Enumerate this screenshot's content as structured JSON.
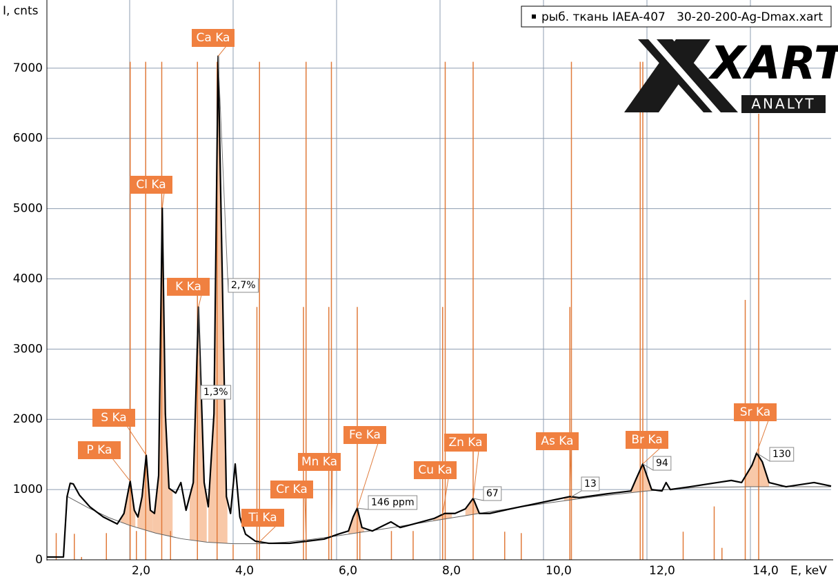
{
  "chart_data": {
    "type": "line",
    "y_label": "I, cnts",
    "x_label": "E, keV",
    "xlim": [
      0.4,
      15.56
    ],
    "ylim": [
      0,
      7970
    ],
    "xticks": [
      {
        "value": 2,
        "label": "2,0"
      },
      {
        "value": 4,
        "label": "4,0"
      },
      {
        "value": 6,
        "label": "6,0"
      },
      {
        "value": 8,
        "label": "8,0"
      },
      {
        "value": 10,
        "label": "10,0"
      },
      {
        "value": 12,
        "label": "12,0"
      },
      {
        "value": 14,
        "label": "14,0"
      }
    ],
    "yticks": [
      0,
      1000,
      2000,
      3000,
      4000,
      5000,
      6000,
      7000
    ],
    "grid": true,
    "legend_position": "upper right",
    "series": [
      {
        "name": "рыб. ткань IAEA-407   30-20-200-Ag-Dmax.xart",
        "color": "#000000",
        "x": [
          0.4,
          0.72,
          0.79,
          0.85,
          0.91,
          1.03,
          1.23,
          1.49,
          1.76,
          1.89,
          2.01,
          2.09,
          2.16,
          2.24,
          2.32,
          2.4,
          2.48,
          2.56,
          2.63,
          2.69,
          2.76,
          2.89,
          2.99,
          3.09,
          3.23,
          3.33,
          3.44,
          3.52,
          3.63,
          3.71,
          3.79,
          3.87,
          3.95,
          4.04,
          4.13,
          4.24,
          4.43,
          4.69,
          5.09,
          5.43,
          5.76,
          6.03,
          6.23,
          6.32,
          6.4,
          6.49,
          6.69,
          7.05,
          7.23,
          7.49,
          7.89,
          8.09,
          8.29,
          8.49,
          8.64,
          8.76,
          8.96,
          9.36,
          9.89,
          10.51,
          10.69,
          11.23,
          11.69,
          11.79,
          11.92,
          12.09,
          12.29,
          12.37,
          12.45,
          12.83,
          13.36,
          13.63,
          13.83,
          14.03,
          14.12,
          14.23,
          14.36,
          14.69,
          15.23,
          15.56
        ],
        "values": [
          40,
          40,
          900,
          1090,
          1080,
          920,
          755,
          610,
          510,
          660,
          1120,
          705,
          610,
          900,
          1490,
          705,
          660,
          1200,
          5010,
          2080,
          1020,
          950,
          1100,
          705,
          1100,
          3600,
          1100,
          755,
          2080,
          7170,
          4045,
          900,
          660,
          1365,
          610,
          365,
          265,
          235,
          235,
          265,
          295,
          365,
          410,
          610,
          735,
          460,
          410,
          540,
          460,
          510,
          590,
          660,
          660,
          725,
          875,
          660,
          660,
          725,
          805,
          900,
          885,
          940,
          980,
          1150,
          1365,
          1000,
          980,
          1100,
          1000,
          1040,
          1100,
          1130,
          1100,
          1345,
          1520,
          1395,
          1100,
          1040,
          1100,
          1050
        ]
      }
    ],
    "background": {
      "color": "#606060",
      "x": [
        0.8,
        1.2,
        1.6,
        2.0,
        2.5,
        3.0,
        3.5,
        4.0,
        4.5,
        5.0,
        5.5,
        6.0,
        7.0,
        8.0,
        9.0,
        10.0,
        11.0,
        12.0,
        13.0,
        14.0,
        15.56
      ],
      "values": [
        900,
        740,
        600,
        490,
        380,
        300,
        250,
        230,
        230,
        250,
        290,
        340,
        450,
        570,
        690,
        800,
        900,
        980,
        1030,
        1040,
        1040
      ]
    },
    "emission_lines": {
      "color": "#e07a3a",
      "x": [
        0.58,
        0.93,
        1.07,
        1.55,
        2.01,
        2.13,
        2.31,
        2.62,
        2.79,
        3.31,
        3.69,
        4.0,
        4.46,
        4.51,
        5.36,
        5.41,
        5.85,
        5.9,
        6.4,
        6.45,
        7.06,
        7.48,
        8.05,
        8.1,
        8.64,
        9.25,
        9.57,
        10.51,
        10.54,
        11.87,
        11.92,
        12.7,
        13.3,
        13.45,
        13.9,
        14.16
      ],
      "values": [
        380,
        370,
        40,
        380,
        7090,
        410,
        7090,
        7090,
        410,
        7090,
        7090,
        215,
        3600,
        7090,
        3600,
        7090,
        3600,
        7090,
        3600,
        410,
        410,
        410,
        3600,
        7090,
        7090,
        400,
        380,
        3600,
        7090,
        7090,
        7090,
        400,
        760,
        170,
        3700,
        6350
      ]
    },
    "peaks": [
      {
        "label": "P Ka",
        "energy": 2.01,
        "region": [
          1.83,
          2.11
        ]
      },
      {
        "label": "S Ka",
        "energy": 2.32,
        "region": [
          2.15,
          2.45
        ]
      },
      {
        "label": "Cl Ka",
        "energy": 2.63,
        "region": [
          2.45,
          2.83
        ]
      },
      {
        "label": "K Ka",
        "energy": 3.33,
        "value_label": "1,3%",
        "region": [
          3.16,
          3.49
        ]
      },
      {
        "label": "Ca Ka",
        "energy": 3.71,
        "value_label": "2,7%",
        "region": [
          3.52,
          3.89
        ]
      },
      {
        "label": "Ti Ka",
        "energy": 4.51
      },
      {
        "label": "Cr Ka",
        "energy": 5.41
      },
      {
        "label": "Mn Ka",
        "energy": 5.9
      },
      {
        "label": "Fe Ka",
        "energy": 6.4,
        "value_label": "146 ppm",
        "region": [
          6.23,
          6.53
        ]
      },
      {
        "label": "Cu Ka",
        "energy": 8.05,
        "region": [
          7.87,
          8.23
        ]
      },
      {
        "label": "Zn Ka",
        "energy": 8.64,
        "value_label": "67",
        "region": [
          8.49,
          8.83
        ]
      },
      {
        "label": "As Ka",
        "energy": 10.54,
        "value_label": "13",
        "region": [
          10.4,
          10.63
        ]
      },
      {
        "label": "Br Ka",
        "energy": 11.92,
        "value_label": "94",
        "region": [
          11.69,
          12.16
        ]
      },
      {
        "label": "Sr Ka",
        "energy": 14.12,
        "value_label": "130",
        "region": [
          13.89,
          14.36
        ]
      }
    ]
  },
  "logo": {
    "text": "XART",
    "subtext": "ANALYT"
  }
}
